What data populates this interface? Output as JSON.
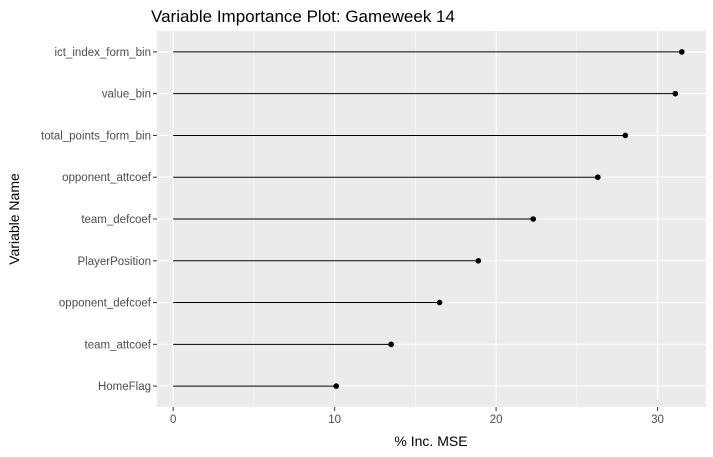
{
  "chart_data": {
    "type": "lollipop",
    "title": "Variable Importance Plot: Gameweek 14",
    "xlabel": "% Inc. MSE",
    "ylabel": "Variable Name",
    "xlim": [
      -1,
      33
    ],
    "xticks": [
      0,
      10,
      20,
      30
    ],
    "grid": true,
    "legend": "none",
    "colors": {
      "panel": "#ebebeb",
      "grid_major": "#ffffff",
      "mark": "#000000",
      "tick_label": "#4d4d4d"
    },
    "categories": [
      "ict_index_form_bin",
      "value_bin",
      "total_points_form_bin",
      "opponent_attcoef",
      "team_defcoef",
      "PlayerPosition",
      "opponent_defcoef",
      "team_attcoef",
      "HomeFlag"
    ],
    "values": [
      31.5,
      31.1,
      28.0,
      26.3,
      22.3,
      18.9,
      16.5,
      13.5,
      10.1
    ]
  }
}
